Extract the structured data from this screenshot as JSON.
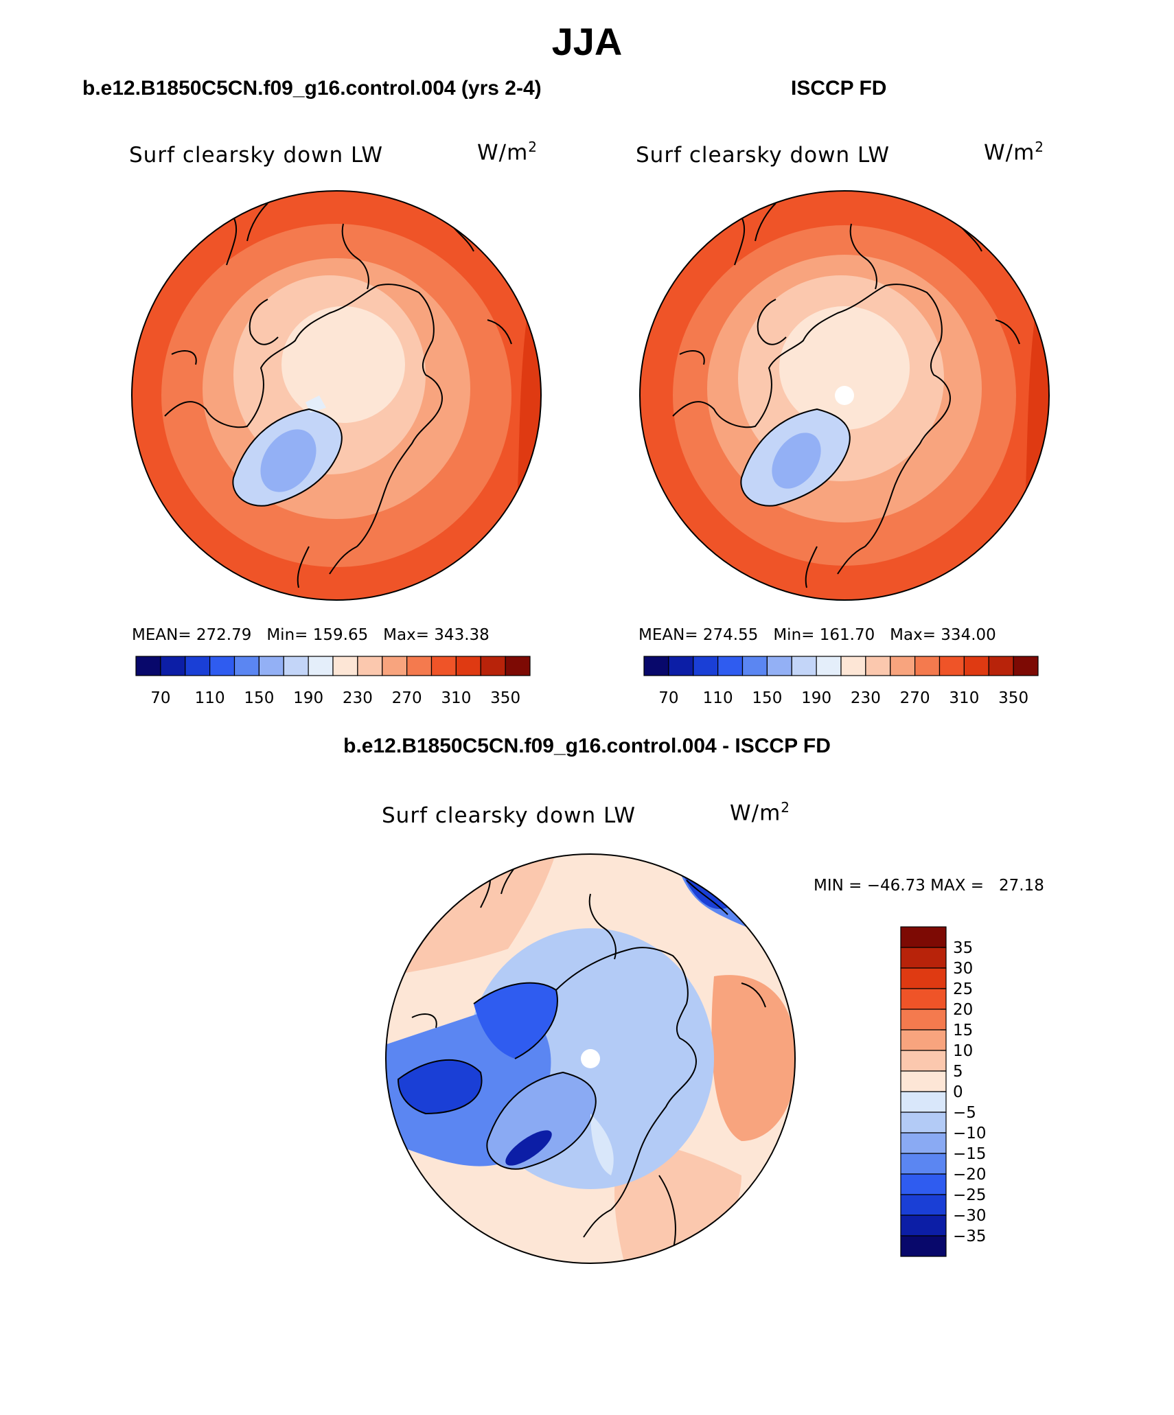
{
  "title": "JJA",
  "panels": [
    {
      "id": "model",
      "header": "b.e12.B1850C5CN.f09_g16.control.004 (yrs 2-4)",
      "variable": "Surf clearsky down LW",
      "units_base": "W/m",
      "units_sup": "2",
      "stats": {
        "mean_label": "MEAN=",
        "mean": "272.79",
        "min_label": "Min=",
        "min": "159.65",
        "max_label": "Max=",
        "max": "343.38"
      }
    },
    {
      "id": "obs",
      "header": "ISCCP FD",
      "variable": "Surf clearsky down LW",
      "units_base": "W/m",
      "units_sup": "2",
      "stats": {
        "mean_label": "MEAN=",
        "mean": "274.55",
        "min_label": "Min=",
        "min": "161.70",
        "max_label": "Max=",
        "max": "334.00"
      }
    }
  ],
  "difference": {
    "header": "b.e12.B1850C5CN.f09_g16.control.004 - ISCCP FD",
    "variable": "Surf clearsky down LW",
    "units_base": "W/m",
    "units_sup": "2",
    "minmax_text": "MIN = −46.73 MAX =   27.18"
  },
  "field_colorbar": {
    "colors": [
      "#08086b",
      "#0c1ea6",
      "#1a3fd6",
      "#2f5cf0",
      "#5b86f2",
      "#93b0f5",
      "#c3d5f8",
      "#e4eefa",
      "#fde6d6",
      "#fbc8ae",
      "#f8a47e",
      "#f47a4e",
      "#ef5428",
      "#df3a12",
      "#b8230a",
      "#7d0a04"
    ],
    "tick_labels": [
      "70",
      "110",
      "150",
      "190",
      "230",
      "270",
      "310",
      "350"
    ]
  },
  "diff_colorbar": {
    "colors": [
      "#7d0a04",
      "#b8230a",
      "#df3a12",
      "#ef5428",
      "#f47a4e",
      "#f8a47e",
      "#fbc8ae",
      "#fde6d6",
      "#d9e7fa",
      "#b3cbf6",
      "#8aaaf3",
      "#5b86f2",
      "#2f5cf0",
      "#1a3fd6",
      "#0c1ea6",
      "#08086b"
    ],
    "tick_labels": [
      "35",
      "30",
      "25",
      "20",
      "15",
      "10",
      "5",
      "0",
      "−5",
      "−10",
      "−15",
      "−20",
      "−25",
      "−30",
      "−35"
    ]
  },
  "chart_data": [
    {
      "type": "heatmap",
      "title": "Surf clearsky down LW",
      "subtitle": "b.e12.B1850C5CN.f09_g16.control.004 (yrs 2-4)",
      "units": "W/m2",
      "projection": "north-polar-stereographic",
      "mean": 272.79,
      "min": 159.65,
      "max": 343.38,
      "levels": [
        70,
        90,
        110,
        130,
        150,
        170,
        190,
        210,
        230,
        250,
        270,
        290,
        310,
        330,
        350
      ],
      "regions": [
        {
          "name": "arctic-ocean",
          "level": 230
        },
        {
          "name": "greenland-interior",
          "level": 190
        },
        {
          "name": "greenland-low",
          "level": 150
        },
        {
          "name": "canadian-archipelago",
          "level": 250
        },
        {
          "name": "subarctic-ring",
          "level": 270
        },
        {
          "name": "midlatitude-ring",
          "level": 310
        },
        {
          "name": "eurasia-east",
          "level": 330
        }
      ]
    },
    {
      "type": "heatmap",
      "title": "Surf clearsky down LW",
      "subtitle": "ISCCP FD",
      "units": "W/m2",
      "projection": "north-polar-stereographic",
      "mean": 274.55,
      "min": 161.7,
      "max": 334.0,
      "levels": [
        70,
        90,
        110,
        130,
        150,
        170,
        190,
        210,
        230,
        250,
        270,
        290,
        310,
        330,
        350
      ],
      "regions": [
        {
          "name": "arctic-ocean",
          "level": 230
        },
        {
          "name": "greenland-interior",
          "level": 190
        },
        {
          "name": "greenland-low",
          "level": 150
        },
        {
          "name": "subarctic-ring",
          "level": 270
        },
        {
          "name": "midlatitude-ring",
          "level": 310
        },
        {
          "name": "eurasia-east",
          "level": 330
        }
      ]
    },
    {
      "type": "heatmap",
      "title": "Surf clearsky down LW",
      "subtitle": "b.e12.B1850C5CN.f09_g16.control.004 - ISCCP FD",
      "units": "W/m2",
      "projection": "north-polar-stereographic",
      "min": -46.73,
      "max": 27.18,
      "levels": [
        -35,
        -30,
        -25,
        -20,
        -15,
        -10,
        -5,
        0,
        5,
        10,
        15,
        20,
        25,
        30,
        35
      ],
      "regions": [
        {
          "name": "arctic-ocean",
          "level": -10
        },
        {
          "name": "canadian-archipelago",
          "level": -25
        },
        {
          "name": "greenland",
          "level": -20
        },
        {
          "name": "north-america",
          "level": -15
        },
        {
          "name": "eurasia",
          "level": 10
        },
        {
          "name": "scandinavia",
          "level": 5
        },
        {
          "name": "north-pacific",
          "level": 5
        }
      ]
    }
  ]
}
